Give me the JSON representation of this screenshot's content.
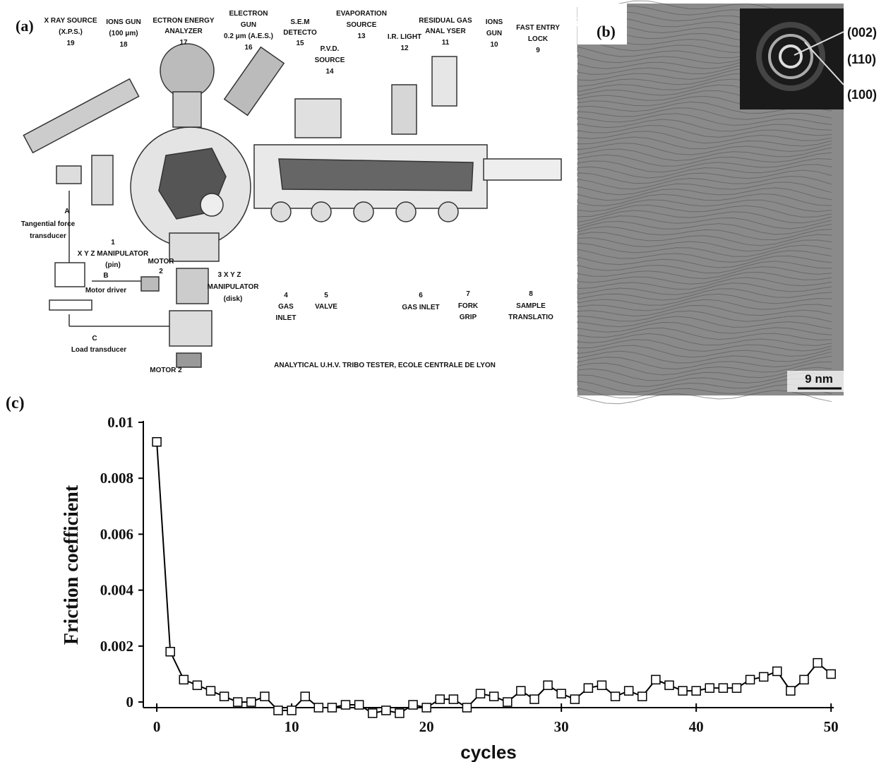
{
  "panel_a": {
    "labels": [
      "(a)",
      "X RAY SOURCE",
      "(X.P.S.)",
      "19",
      "IONS GUN",
      "(100 μm)",
      "18",
      "ECTRON ENERGY",
      "ANALYZER",
      "17",
      "ELECTRON",
      "GUN",
      "0.2 μm (A.E.S.)",
      "16",
      "S.E.M",
      "DETECTO",
      "15",
      "EVAPORATION",
      "SOURCE",
      "13",
      "P.V.D.",
      "SOURCE",
      "14",
      "I.R. LIGHT",
      "12",
      "RESIDUAL GAS",
      "ANAL YSER",
      "11",
      "IONS",
      "GUN",
      "10",
      "FAST ENTRY",
      "LOCK",
      "9",
      "A",
      "Tangential force",
      "transducer",
      "1",
      "X Y Z MANIPULATOR",
      "(pin)",
      "B",
      "Motor driver",
      "MOTOR",
      "2",
      "3 X Y Z",
      "MANIPULATOR",
      "(disk)",
      "4",
      "GAS",
      "INLET",
      "5",
      "VALVE",
      "6",
      "GAS INLET",
      "7",
      "FORK",
      "GRIP",
      "8",
      "SAMPLE",
      "TRANSLATIO",
      "C",
      "Load transducer",
      "MOTOR 2",
      "ANALYTICAL U.H.V. TRIBO TESTER,  ECOLE CENTRALE DE LYON"
    ]
  },
  "panel_b": {
    "label": "(b)",
    "rings": [
      "(002)",
      "(110)",
      "(100)"
    ],
    "scale_bar": "9 nm"
  },
  "chart_data": {
    "type": "line",
    "panel_label": "(c)",
    "x_label": "cycles",
    "y_label": "Friction coefficient",
    "x": [
      0,
      1,
      2,
      3,
      4,
      5,
      6,
      7,
      8,
      9,
      10,
      11,
      12,
      13,
      14,
      15,
      16,
      17,
      18,
      19,
      20,
      21,
      22,
      23,
      24,
      25,
      26,
      27,
      28,
      29,
      30,
      31,
      32,
      33,
      34,
      35,
      36,
      37,
      38,
      39,
      40,
      41,
      42,
      43,
      44,
      45,
      46,
      47,
      48,
      49,
      50
    ],
    "series": [
      {
        "name": "Friction coefficient",
        "color": "#000000",
        "values": [
          0.0093,
          0.0018,
          0.0008,
          0.0006,
          0.0004,
          0.0002,
          0,
          0,
          0.0002,
          -0.0003,
          -0.0003,
          0.0002,
          -0.0002,
          -0.0002,
          -0.0001,
          -0.0001,
          -0.0004,
          -0.0003,
          -0.0004,
          -0.0001,
          -0.0002,
          0.0001,
          0.0001,
          -0.0002,
          0.0003,
          0.0002,
          0,
          0.0004,
          0.0001,
          0.0006,
          0.0003,
          0.0001,
          0.0005,
          0.0006,
          0.0002,
          0.0004,
          0.0002,
          0.0008,
          0.0006,
          0.0004,
          0.0004,
          0.0005,
          0.0005,
          0.0005,
          0.0008,
          0.0009,
          0.0011,
          0.0004,
          0.0008,
          0.0014,
          0.001
        ]
      }
    ],
    "xlim": [
      -1,
      50.2
    ],
    "ylim": [
      -0.0002,
      0.01
    ],
    "xticks": [
      0,
      10,
      20,
      30,
      40,
      50
    ],
    "yticks": [
      0,
      0.002,
      0.004,
      0.006,
      0.008,
      0.01
    ]
  }
}
